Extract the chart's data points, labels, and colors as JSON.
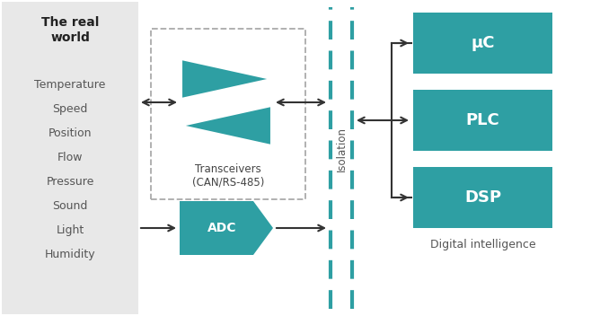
{
  "bg_color": "#ffffff",
  "teal_color": "#2e9fa3",
  "white": "#ffffff",
  "black": "#333333",
  "gray_box_bg": "#e8e8e8",
  "real_world_items": [
    "Temperature",
    "Speed",
    "Position",
    "Flow",
    "Pressure",
    "Sound",
    "Light",
    "Humidity"
  ],
  "right_boxes": [
    "μC",
    "PLC",
    "DSP"
  ],
  "dashed_box_label": "Transceivers\n(CAN/RS-485)",
  "isolation_label": "Isolation",
  "digital_intelligence_label": "Digital intelligence",
  "real_world_title": "The real\nworld",
  "figw": 6.58,
  "figh": 3.52,
  "dpi": 100
}
